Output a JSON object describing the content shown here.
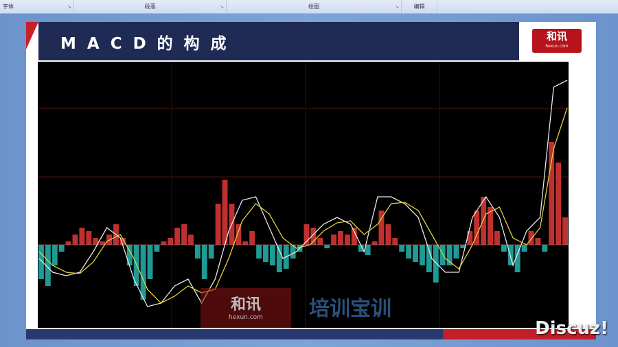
{
  "ribbon": {
    "groups": [
      "字体",
      "段落",
      "绘图",
      "编辑"
    ]
  },
  "slide": {
    "title": "MACD的构成",
    "logo": {
      "main": "和讯",
      "sub": "hexun.com"
    }
  },
  "watermarks": {
    "hexun": "和讯",
    "hexun_sub": "hexun.com",
    "peixunbao": "培训宝训",
    "site": "Discuz!"
  },
  "colors": {
    "title_bar": "#1f2a55",
    "accent_red": "#c8202b",
    "hist_positive": "#c0302e",
    "hist_negative": "#1f9a94",
    "dif_line": "#e8e8e8",
    "dea_line": "#e0d040"
  },
  "chart_data": {
    "type": "bar+line",
    "title": "",
    "xlabel": "",
    "ylabel": "",
    "grid": true,
    "histogram": [
      -50,
      -60,
      -30,
      -10,
      5,
      15,
      25,
      20,
      10,
      5,
      15,
      30,
      10,
      -30,
      -60,
      -80,
      -50,
      -10,
      5,
      10,
      25,
      30,
      15,
      -20,
      -50,
      -20,
      60,
      95,
      60,
      30,
      5,
      20,
      -20,
      -25,
      -30,
      -40,
      -35,
      -20,
      -10,
      30,
      25,
      10,
      -5,
      15,
      20,
      15,
      25,
      -10,
      -15,
      5,
      50,
      30,
      10,
      -10,
      -20,
      -25,
      -30,
      -40,
      -55,
      -30,
      -30,
      -20,
      -5,
      20,
      50,
      70,
      55,
      20,
      -10,
      -30,
      -40,
      -10,
      20,
      10,
      -10,
      150,
      120,
      40
    ],
    "series": [
      {
        "values": [
          -20,
          -40,
          -45,
          -40,
          -10,
          25,
          10,
          -50,
          -90,
          -85,
          -60,
          -50,
          -85,
          -50,
          20,
          65,
          70,
          25,
          -20,
          -10,
          10,
          30,
          40,
          30,
          -10,
          70,
          70,
          60,
          40,
          -20,
          -40,
          -40,
          40,
          70,
          40,
          -30,
          20,
          40,
          230,
          240
        ]
      },
      {
        "values": [
          -10,
          -30,
          -40,
          -42,
          -25,
          5,
          15,
          -20,
          -65,
          -85,
          -75,
          -60,
          -70,
          -65,
          -20,
          35,
          60,
          45,
          10,
          -5,
          0,
          20,
          32,
          35,
          15,
          30,
          60,
          62,
          50,
          15,
          -20,
          -35,
          0,
          45,
          55,
          10,
          0,
          25,
          140,
          200
        ]
      }
    ]
  }
}
